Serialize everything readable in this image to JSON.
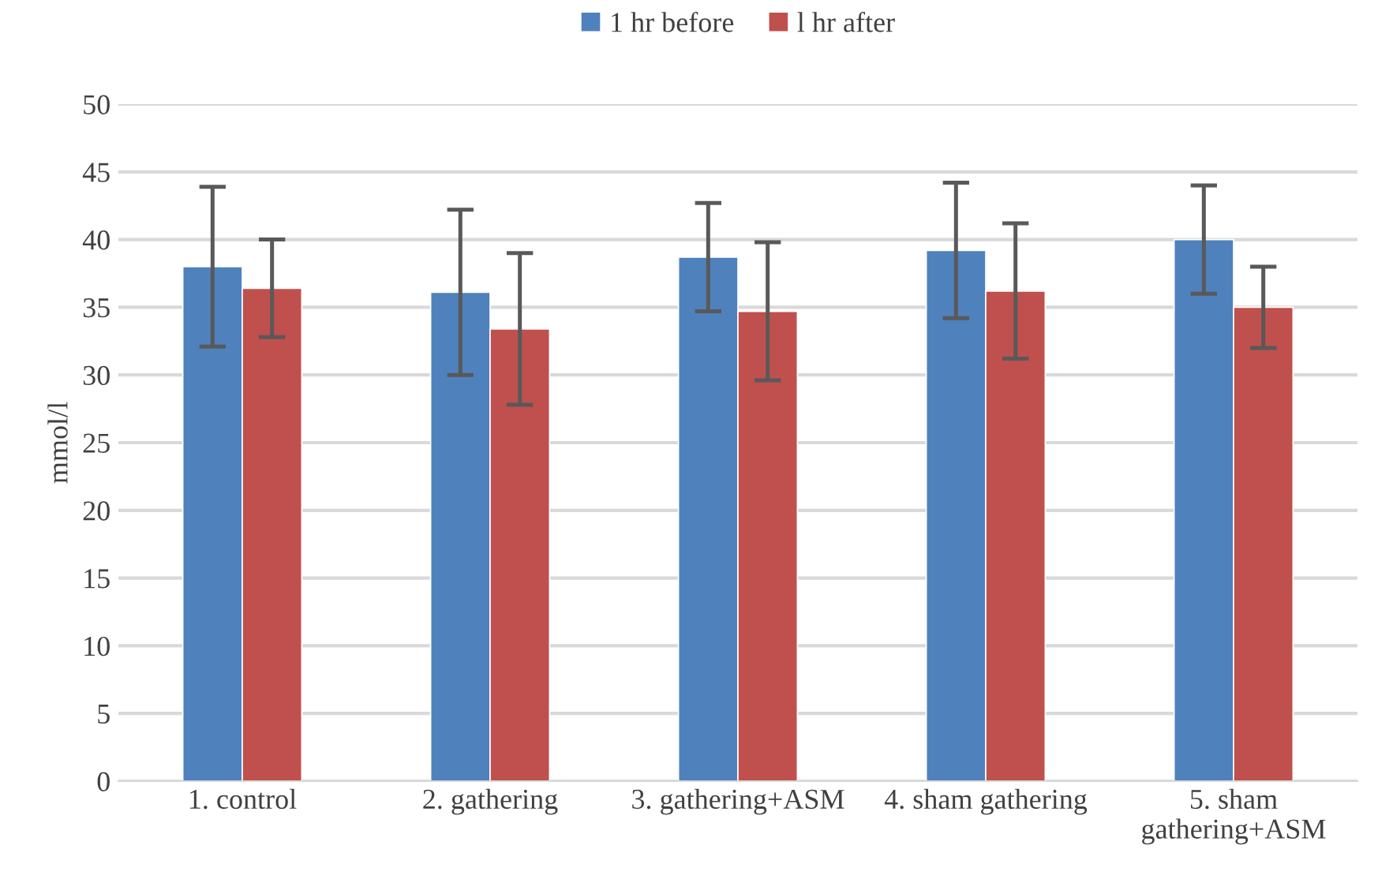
{
  "chart_data": {
    "type": "bar",
    "ylabel": "mmol/l",
    "categories": [
      "1. control",
      "2. gathering",
      "3. gathering+ASM",
      "4. sham gathering",
      "5. sham\ngathering+ASM"
    ],
    "series": [
      {
        "name": "1 hr before",
        "color": "#4f81bd",
        "values": [
          38.0,
          36.1,
          38.7,
          39.2,
          40.0
        ],
        "errors": [
          5.9,
          6.1,
          4.0,
          5.0,
          4.0
        ]
      },
      {
        "name": "l hr after",
        "color": "#c0504d",
        "values": [
          36.4,
          33.4,
          34.7,
          36.2,
          35.0
        ],
        "errors": [
          3.6,
          5.6,
          5.1,
          5.0,
          3.0
        ]
      }
    ],
    "ylim": [
      0,
      50
    ],
    "yticks": [
      0,
      5,
      10,
      15,
      20,
      25,
      30,
      35,
      40,
      45,
      50
    ],
    "grid": "y",
    "legend": "top"
  }
}
